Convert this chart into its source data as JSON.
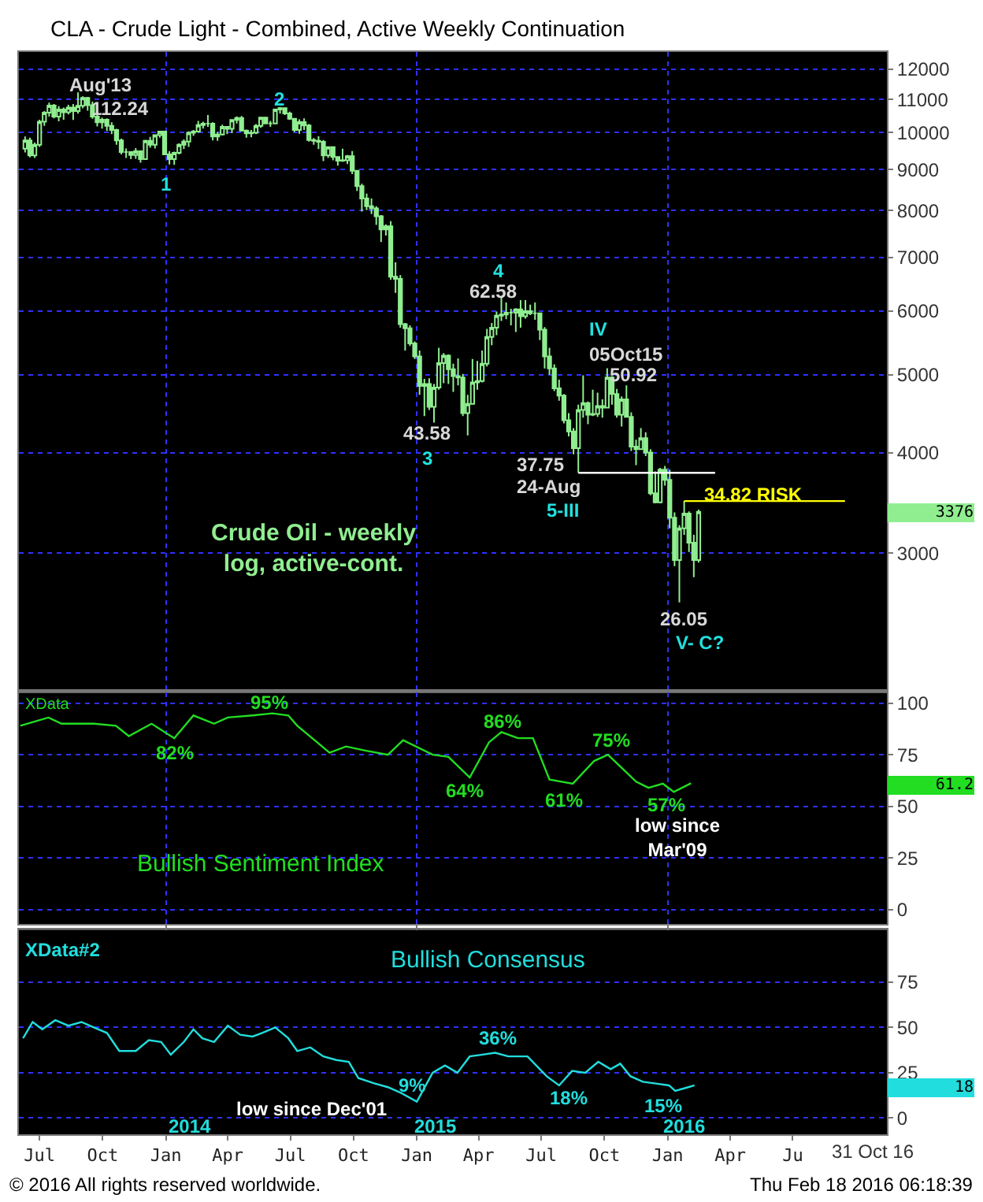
{
  "chart_data": [
    {
      "type": "candlestick",
      "title": "CLA - Crude Light - Combined, Active Weekly Continuation",
      "color": "#90ee90",
      "log": true,
      "grid": true,
      "tick_labels": "y",
      "xlim": [
        "2013-06-01",
        "2016-11-15"
      ],
      "xticks": [
        {
          "value": "2014-01-01",
          "label": null
        },
        {
          "value": "2015-01-01",
          "label": null
        },
        {
          "value": "2016-01-01",
          "label": null
        }
      ],
      "ylim": [
        2030,
        12600
      ],
      "yticks": [
        3000,
        4000,
        5000,
        6000,
        7000,
        8000,
        9000,
        10000,
        11000,
        12000
      ],
      "x": [
        "2013-06-10",
        "2013-06-17",
        "2013-06-24",
        "2013-07-01",
        "2013-07-08",
        "2013-07-15",
        "2013-07-22",
        "2013-07-29",
        "2013-08-05",
        "2013-08-12",
        "2013-08-19",
        "2013-08-26",
        "2013-09-02",
        "2013-09-09",
        "2013-09-16",
        "2013-09-23",
        "2013-09-30",
        "2013-10-07",
        "2013-10-14",
        "2013-10-21",
        "2013-10-28",
        "2013-11-04",
        "2013-11-11",
        "2013-11-18",
        "2013-11-25",
        "2013-12-02",
        "2013-12-09",
        "2013-12-16",
        "2013-12-23",
        "2013-12-30",
        "2014-01-06",
        "2014-01-13",
        "2014-01-20",
        "2014-01-27",
        "2014-02-03",
        "2014-02-10",
        "2014-02-17",
        "2014-02-24",
        "2014-03-03",
        "2014-03-10",
        "2014-03-17",
        "2014-03-24",
        "2014-03-31",
        "2014-04-07",
        "2014-04-14",
        "2014-04-21",
        "2014-04-28",
        "2014-05-05",
        "2014-05-12",
        "2014-05-19",
        "2014-05-26",
        "2014-06-02",
        "2014-06-09",
        "2014-06-16",
        "2014-06-23",
        "2014-06-30",
        "2014-07-07",
        "2014-07-14",
        "2014-07-21",
        "2014-07-28",
        "2014-08-04",
        "2014-08-11",
        "2014-08-18",
        "2014-08-25",
        "2014-09-01",
        "2014-09-08",
        "2014-09-15",
        "2014-09-22",
        "2014-09-29",
        "2014-10-06",
        "2014-10-13",
        "2014-10-20",
        "2014-10-27",
        "2014-11-03",
        "2014-11-10",
        "2014-11-17",
        "2014-11-24",
        "2014-12-01",
        "2014-12-08",
        "2014-12-15",
        "2014-12-22",
        "2014-12-29",
        "2015-01-05",
        "2015-01-12",
        "2015-01-19",
        "2015-01-26",
        "2015-02-02",
        "2015-02-09",
        "2015-02-16",
        "2015-02-23",
        "2015-03-02",
        "2015-03-09",
        "2015-03-16",
        "2015-03-23",
        "2015-03-30",
        "2015-04-06",
        "2015-04-13",
        "2015-04-20",
        "2015-04-27",
        "2015-05-04",
        "2015-05-11",
        "2015-05-18",
        "2015-05-25",
        "2015-06-01",
        "2015-06-08",
        "2015-06-15",
        "2015-06-22",
        "2015-06-29",
        "2015-07-06",
        "2015-07-13",
        "2015-07-20",
        "2015-07-27",
        "2015-08-03",
        "2015-08-10",
        "2015-08-17",
        "2015-08-24",
        "2015-08-31",
        "2015-09-07",
        "2015-09-14",
        "2015-09-21",
        "2015-09-28",
        "2015-10-05",
        "2015-10-12",
        "2015-10-19",
        "2015-10-26",
        "2015-11-02",
        "2015-11-09",
        "2015-11-16",
        "2015-11-23",
        "2015-11-30",
        "2015-12-07",
        "2015-12-14",
        "2015-12-21",
        "2015-12-28",
        "2016-01-04",
        "2016-01-11",
        "2016-01-18",
        "2016-01-25",
        "2016-02-01",
        "2016-02-08",
        "2016-02-15"
      ],
      "ohlc": [
        [
          9550,
          9890,
          9450,
          9780
        ],
        [
          9780,
          9860,
          9320,
          9370
        ],
        [
          9370,
          9720,
          9300,
          9660
        ],
        [
          9660,
          10380,
          9600,
          10320
        ],
        [
          10320,
          10640,
          10200,
          10590
        ],
        [
          10590,
          10900,
          10470,
          10810
        ],
        [
          10810,
          10860,
          10420,
          10470
        ],
        [
          10470,
          10790,
          10330,
          10690
        ],
        [
          10690,
          10750,
          10380,
          10600
        ],
        [
          10600,
          10830,
          10540,
          10750
        ],
        [
          10750,
          10860,
          10370,
          10640
        ],
        [
          10640,
          11224,
          10560,
          10800
        ],
        [
          10800,
          11100,
          10720,
          11050
        ],
        [
          11050,
          11080,
          10650,
          10820
        ],
        [
          10820,
          10930,
          10410,
          10470
        ],
        [
          10470,
          10560,
          10180,
          10300
        ],
        [
          10300,
          10440,
          10120,
          10380
        ],
        [
          10380,
          10420,
          10050,
          10200
        ],
        [
          10200,
          10300,
          9960,
          10080
        ],
        [
          10080,
          10110,
          9660,
          9780
        ],
        [
          9780,
          9830,
          9400,
          9460
        ],
        [
          9460,
          9560,
          9300,
          9460
        ],
        [
          9460,
          9480,
          9270,
          9380
        ],
        [
          9380,
          9570,
          9280,
          9480
        ],
        [
          9480,
          9500,
          9180,
          9270
        ],
        [
          9270,
          9800,
          9250,
          9770
        ],
        [
          9770,
          9880,
          9580,
          9660
        ],
        [
          9660,
          9950,
          9560,
          9930
        ],
        [
          9930,
          10040,
          9860,
          10030
        ],
        [
          10030,
          10050,
          9380,
          9396
        ],
        [
          9396,
          9480,
          9130,
          9270
        ],
        [
          9270,
          9470,
          9120,
          9440
        ],
        [
          9440,
          9700,
          9400,
          9660
        ],
        [
          9660,
          9810,
          9540,
          9750
        ],
        [
          9750,
          10040,
          9600,
          10000
        ],
        [
          10000,
          10080,
          9910,
          10030
        ],
        [
          10030,
          10340,
          10000,
          10220
        ],
        [
          10220,
          10320,
          10120,
          10260
        ],
        [
          10260,
          10520,
          10170,
          10260
        ],
        [
          10260,
          10300,
          9780,
          9890
        ],
        [
          9890,
          10020,
          9770,
          9950
        ],
        [
          9950,
          10230,
          9920,
          10170
        ],
        [
          10170,
          10190,
          9960,
          10110
        ],
        [
          10110,
          10390,
          9990,
          10370
        ],
        [
          10370,
          10480,
          10270,
          10430
        ],
        [
          10430,
          10490,
          10030,
          10060
        ],
        [
          10060,
          10090,
          9860,
          9980
        ],
        [
          9980,
          10080,
          9870,
          10000
        ],
        [
          10000,
          10250,
          9960,
          10200
        ],
        [
          10200,
          10450,
          10140,
          10440
        ],
        [
          10440,
          10460,
          10260,
          10270
        ],
        [
          10270,
          10340,
          10170,
          10270
        ],
        [
          10270,
          10700,
          10260,
          10690
        ],
        [
          10690,
          10768,
          10560,
          10730
        ],
        [
          10730,
          10750,
          10520,
          10570
        ],
        [
          10570,
          10620,
          10370,
          10410
        ],
        [
          10410,
          10430,
          10020,
          10080
        ],
        [
          10080,
          10390,
          9970,
          10310
        ],
        [
          10310,
          10420,
          10080,
          10210
        ],
        [
          10210,
          10250,
          9750,
          9790
        ],
        [
          9790,
          9850,
          9660,
          9770
        ],
        [
          9770,
          9900,
          9540,
          9740
        ],
        [
          9740,
          9790,
          9220,
          9370
        ],
        [
          9370,
          9610,
          9300,
          9596
        ],
        [
          9596,
          9600,
          9240,
          9330
        ],
        [
          9330,
          9340,
          9100,
          9230
        ],
        [
          9230,
          9550,
          9200,
          9240
        ],
        [
          9240,
          9380,
          9140,
          9350
        ],
        [
          9350,
          9490,
          8880,
          8970
        ],
        [
          8970,
          8990,
          8460,
          8580
        ],
        [
          8580,
          8640,
          7980,
          8280
        ],
        [
          8280,
          8400,
          8010,
          8100
        ],
        [
          8100,
          8280,
          7920,
          8050
        ],
        [
          8050,
          8100,
          7680,
          7870
        ],
        [
          7870,
          7900,
          7310,
          7580
        ],
        [
          7580,
          7690,
          7450,
          7650
        ],
        [
          7650,
          7760,
          6560,
          6620
        ],
        [
          6620,
          6900,
          6320,
          6580
        ],
        [
          6580,
          6650,
          5720,
          5780
        ],
        [
          5780,
          5800,
          5360,
          5710
        ],
        [
          5710,
          5760,
          5430,
          5470
        ],
        [
          5470,
          5500,
          5230,
          5270
        ],
        [
          5270,
          5360,
          4720,
          4840
        ],
        [
          4840,
          4940,
          4440,
          4870
        ],
        [
          4870,
          4950,
          4520,
          4560
        ],
        [
          4560,
          4870,
          4358,
          4820
        ],
        [
          4820,
          5400,
          4790,
          5170
        ],
        [
          5170,
          5320,
          4880,
          5280
        ],
        [
          5280,
          5300,
          4870,
          5080
        ],
        [
          5080,
          5160,
          4760,
          4980
        ],
        [
          4980,
          5240,
          4850,
          4960
        ],
        [
          4960,
          5010,
          4440,
          4480
        ],
        [
          4480,
          4720,
          4203,
          4600
        ],
        [
          4600,
          5230,
          4590,
          4890
        ],
        [
          4890,
          5200,
          4790,
          4910
        ],
        [
          4910,
          5360,
          4890,
          5160
        ],
        [
          5160,
          5700,
          5120,
          5570
        ],
        [
          5570,
          5800,
          5440,
          5720
        ],
        [
          5720,
          5990,
          5600,
          5920
        ],
        [
          5920,
          6258,
          5830,
          5940
        ],
        [
          5940,
          6150,
          5860,
          5970
        ],
        [
          5970,
          6040,
          5760,
          5970
        ],
        [
          5970,
          6050,
          5650,
          6030
        ],
        [
          6030,
          6190,
          5720,
          5910
        ],
        [
          5910,
          6190,
          5870,
          6000
        ],
        [
          6000,
          6110,
          5930,
          5960
        ],
        [
          5960,
          6150,
          5850,
          5960
        ],
        [
          5960,
          5970,
          5520,
          5690
        ],
        [
          5690,
          5730,
          5090,
          5270
        ],
        [
          5270,
          5400,
          5000,
          5090
        ],
        [
          5090,
          5150,
          4770,
          4810
        ],
        [
          4810,
          4930,
          4640,
          4710
        ],
        [
          4710,
          4730,
          4350,
          4390
        ],
        [
          4390,
          4480,
          4190,
          4250
        ],
        [
          4250,
          4290,
          3980,
          4050
        ],
        [
          4050,
          4590,
          3775,
          4520
        ],
        [
          4520,
          4990,
          4420,
          4610
        ],
        [
          4610,
          4630,
          4340,
          4460
        ],
        [
          4460,
          4790,
          4440,
          4470
        ],
        [
          4470,
          4750,
          4430,
          4570
        ],
        [
          4570,
          4660,
          4420,
          4550
        ],
        [
          4550,
          5092,
          4540,
          4960
        ],
        [
          4960,
          4980,
          4590,
          4730
        ],
        [
          4730,
          4800,
          4420,
          4460
        ],
        [
          4460,
          4700,
          4310,
          4660
        ],
        [
          4660,
          4850,
          4420,
          4430
        ],
        [
          4430,
          4490,
          4020,
          4070
        ],
        [
          4070,
          4150,
          3860,
          4040
        ],
        [
          4040,
          4290,
          4030,
          4170
        ],
        [
          4170,
          4240,
          3960,
          4000
        ],
        [
          4000,
          4040,
          3540,
          3560
        ],
        [
          3560,
          3790,
          3460,
          3470
        ],
        [
          3470,
          3830,
          3460,
          3810
        ],
        [
          3810,
          3850,
          3640,
          3700
        ],
        [
          3700,
          3810,
          3220,
          3320
        ],
        [
          3320,
          3370,
          2890,
          2940
        ],
        [
          2940,
          3250,
          2605,
          3220
        ],
        [
          3220,
          3482,
          3160,
          3360
        ],
        [
          3360,
          3380,
          3010,
          3090
        ],
        [
          3090,
          3160,
          2800,
          2940
        ],
        [
          2940,
          3397,
          2920,
          3376
        ]
      ],
      "series": [
        {
          "type": "line",
          "color": "#ffffff",
          "x": [
            "2015-08-24",
            "2016-03-10"
          ],
          "values": [
            3775,
            3775
          ]
        },
        {
          "type": "line",
          "color": "#ffff00",
          "x": [
            "2016-01-25",
            "2016-09-15"
          ],
          "values": [
            3482,
            3482
          ]
        }
      ],
      "annotations": [
        "Aug'13",
        "112.24",
        "1",
        "2",
        "4",
        "62.58",
        "IV",
        "05Oct15",
        "50.92",
        "43.58",
        "3",
        "37.75",
        "24-Aug",
        "5-III",
        "34.82 RISK",
        "26.05",
        "V- C?",
        "3376",
        "Crude Oil - weekly\nlog, active-cont."
      ]
    },
    {
      "type": "line",
      "title": "Bullish Sentiment Index",
      "grid": true,
      "tick_labels": "y",
      "xlim": [
        "2013-06-01",
        "2016-11-15"
      ],
      "xticks": [
        {
          "value": "2014-01-01",
          "label": null
        },
        {
          "value": "2015-01-01",
          "label": null
        },
        {
          "value": "2016-01-01",
          "label": null
        }
      ],
      "ylim": [
        -7,
        105
      ],
      "yticks": [
        0,
        25,
        50,
        75,
        100
      ],
      "series": [
        {
          "color": "#22dd22",
          "x": [
            "2013-06-03",
            "2013-07-14",
            "2013-08-02",
            "2013-09-18",
            "2013-10-20",
            "2013-11-08",
            "2013-12-11",
            "2014-01-13",
            "2014-02-10",
            "2014-03-12",
            "2014-04-01",
            "2014-05-07",
            "2014-06-05",
            "2014-06-28",
            "2014-07-11",
            "2014-08-09",
            "2014-08-27",
            "2014-09-20",
            "2014-10-18",
            "2014-11-20",
            "2014-12-12",
            "2015-01-24",
            "2015-02-16",
            "2015-03-19",
            "2015-04-16",
            "2015-05-04",
            "2015-05-28",
            "2015-06-19",
            "2015-07-13",
            "2015-08-16",
            "2015-09-16",
            "2015-10-06",
            "2015-10-25",
            "2015-11-16",
            "2015-12-04",
            "2015-12-25",
            "2016-01-10",
            "2016-02-04"
          ],
          "values": [
            89,
            93,
            90,
            90,
            89,
            84,
            90,
            83,
            94,
            90,
            93,
            94,
            95,
            94,
            89,
            81,
            76,
            79,
            77,
            75,
            82,
            75,
            74,
            64,
            81,
            86,
            83,
            83,
            63,
            61,
            72,
            75,
            69,
            62,
            59,
            61,
            57,
            61.2
          ]
        }
      ],
      "annotations": [
        "95%",
        "82%",
        "86%",
        "64%",
        "61%",
        "75%",
        "57%",
        "low since\nMar'09",
        "61.2",
        "XData"
      ]
    },
    {
      "type": "line",
      "title": "Bullish Consensus",
      "grid": "y",
      "xlim": [
        "2013-06-01",
        "2016-11-15"
      ],
      "xticks": [
        {
          "value": "2013-07-01",
          "label": "Jul"
        },
        {
          "value": "2013-10-01",
          "label": "Oct"
        },
        {
          "value": "2014-01-01",
          "label": "Jan"
        },
        {
          "value": "2014-04-01",
          "label": "Apr"
        },
        {
          "value": "2014-07-01",
          "label": "Jul"
        },
        {
          "value": "2014-10-01",
          "label": "Oct"
        },
        {
          "value": "2015-01-01",
          "label": "Jan"
        },
        {
          "value": "2015-04-01",
          "label": "Apr"
        },
        {
          "value": "2015-07-01",
          "label": "Jul"
        },
        {
          "value": "2015-10-01",
          "label": "Oct"
        },
        {
          "value": "2016-01-01",
          "label": "Jan"
        },
        {
          "value": "2016-04-01",
          "label": "Apr"
        },
        {
          "value": "2016-07-01",
          "label": "Ju"
        }
      ],
      "ylim": [
        -9,
        104
      ],
      "yticks": [
        0,
        25,
        50,
        75
      ],
      "series": [
        {
          "color": "#22dddd",
          "x": [
            "2013-06-07",
            "2013-06-21",
            "2013-07-05",
            "2013-07-24",
            "2013-08-12",
            "2013-08-31",
            "2013-09-18",
            "2013-10-07",
            "2013-10-25",
            "2013-11-18",
            "2013-12-07",
            "2013-12-25",
            "2014-01-08",
            "2014-01-27",
            "2014-02-10",
            "2014-02-23",
            "2014-03-12",
            "2014-04-01",
            "2014-04-19",
            "2014-05-07",
            "2014-05-21",
            "2014-06-09",
            "2014-06-28",
            "2014-07-11",
            "2014-07-30",
            "2014-08-18",
            "2014-09-06",
            "2014-09-24",
            "2014-10-08",
            "2014-11-01",
            "2014-11-20",
            "2014-12-08",
            "2015-01-01",
            "2015-01-24",
            "2015-02-11",
            "2015-03-01",
            "2015-03-19",
            "2015-04-07",
            "2015-04-25",
            "2015-05-14",
            "2015-06-11",
            "2015-07-09",
            "2015-07-27",
            "2015-08-15",
            "2015-09-03",
            "2015-09-22",
            "2015-10-10",
            "2015-10-24",
            "2015-11-08",
            "2015-11-26",
            "2015-12-15",
            "2016-01-03",
            "2016-01-12",
            "2016-01-31",
            "2016-02-09"
          ],
          "values": [
            44,
            53,
            49,
            54,
            51,
            53,
            50,
            47,
            37,
            37,
            43,
            42,
            35,
            42,
            49,
            44,
            42,
            51,
            46,
            45,
            47,
            50,
            44,
            37,
            39,
            34,
            32,
            31,
            22,
            19,
            17,
            14,
            9,
            25,
            29,
            25,
            34,
            35,
            36,
            34,
            34,
            23,
            18,
            26,
            25,
            31,
            27,
            30,
            23,
            20,
            19,
            18,
            15,
            17,
            18
          ]
        }
      ],
      "annotations": [
        "9%",
        "36%",
        "18%",
        "15%",
        "low since Dec'01",
        "2014",
        "2015",
        "2016",
        "18",
        "XData#2",
        "31 Oct 16",
        "© 2016 All rights reserved worldwide.",
        "Thu Feb 18 2016 06:18:39"
      ]
    }
  ]
}
